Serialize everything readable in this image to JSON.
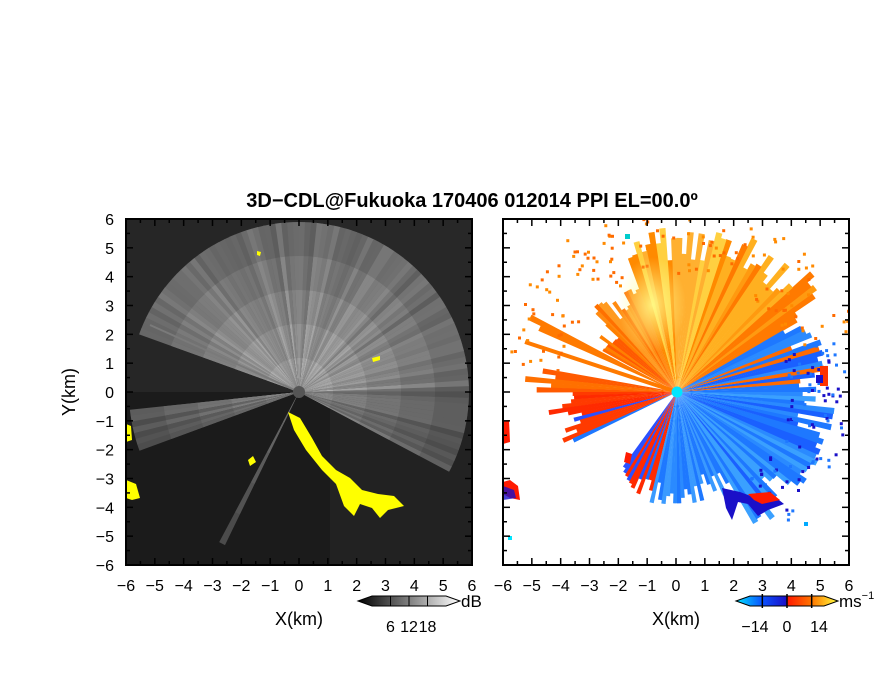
{
  "figure": {
    "title": "3D−CDL@Fukuoka 170406 012014 PPI EL=00.0º"
  },
  "chart_data": [
    {
      "type": "heatmap",
      "panel": "left",
      "quantity": "SNR",
      "xlabel": "X(km)",
      "ylabel": "Y(km)",
      "xlim": [
        -6,
        6
      ],
      "ylim": [
        -6,
        6
      ],
      "x_ticks": [
        "−6",
        "−5",
        "−4",
        "−3",
        "−2",
        "−1",
        "0",
        "1",
        "2",
        "3",
        "4",
        "5",
        "6"
      ],
      "y_ticks": [
        "6",
        "5",
        "4",
        "3",
        "2",
        "1",
        "0",
        "−1",
        "−2",
        "−3",
        "−4",
        "−5",
        "−6"
      ],
      "colorbar": {
        "unit": "dB",
        "ticks": [
          6,
          12,
          18
        ],
        "tick_labels": [
          "6",
          "12",
          "18"
        ],
        "range": [
          0,
          24
        ],
        "colors": [
          "#000000",
          "#ffffff"
        ]
      },
      "highlight_color": "#ffff00",
      "background_color": "#1a1a1a"
    },
    {
      "type": "heatmap",
      "panel": "right",
      "quantity": "Doppler velocity",
      "xlabel": "X(km)",
      "ylabel": "",
      "xlim": [
        -6,
        6
      ],
      "ylim": [
        -6,
        6
      ],
      "x_ticks": [
        "−6",
        "−5",
        "−4",
        "−3",
        "−2",
        "−1",
        "0",
        "1",
        "2",
        "3",
        "4",
        "5",
        "6"
      ],
      "colorbar": {
        "unit": "ms",
        "unit_exponent": "−1",
        "ticks": [
          -14,
          0,
          14
        ],
        "tick_labels": [
          "−14",
          "0",
          "14"
        ],
        "range": [
          -21,
          21
        ],
        "colors": [
          "#00e5ff",
          "#0a55ff",
          "#1a10c8",
          "#ff1a00",
          "#ff7a00",
          "#ffff40"
        ]
      },
      "receding_color": "#ff6a00",
      "approaching_color": "#1e78ff"
    }
  ]
}
